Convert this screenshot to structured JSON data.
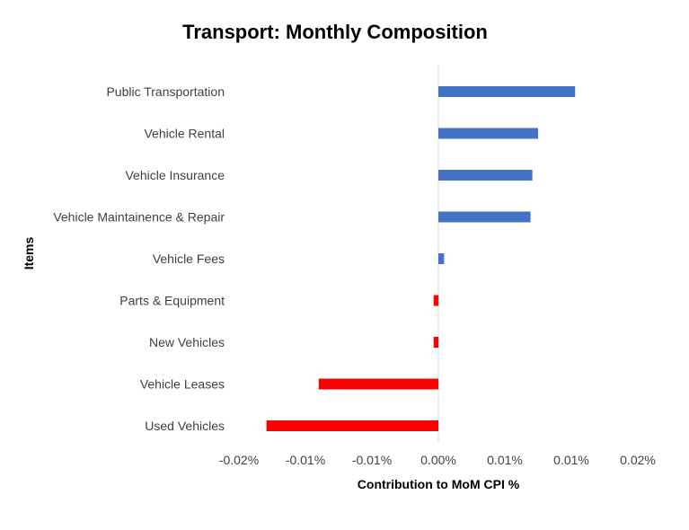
{
  "chart_data": {
    "type": "bar",
    "orientation": "horizontal",
    "title": "Transport: Monthly Composition",
    "xlabel": "Contribution to MoM CPI %",
    "ylabel": "Items",
    "categories": [
      "Public Transportation",
      "Vehicle Rental",
      "Vehicle Insurance",
      "Vehicle Maintainence & Repair",
      "Vehicle Fees",
      "Parts & Equipment",
      "New Vehicles",
      "Vehicle Leases",
      "Used Vehicles"
    ],
    "values": [
      0.0144,
      0.0105,
      0.0099,
      0.0097,
      0.0006,
      -0.0005,
      -0.0005,
      -0.0126,
      -0.0181
    ],
    "xlim": [
      -0.021,
      0.021
    ],
    "xticks": [
      -0.021,
      -0.014,
      -0.007,
      0.0,
      0.007,
      0.014,
      0.021
    ],
    "xtick_labels": [
      "-0.02%",
      "-0.01%",
      "-0.01%",
      "0.00%",
      "0.01%",
      "0.01%",
      "0.02%"
    ],
    "colors": {
      "positive": "#4472C4",
      "negative": "#FF0000",
      "zero_line": "#D9D9D9"
    },
    "grid": false,
    "legend": "none"
  }
}
